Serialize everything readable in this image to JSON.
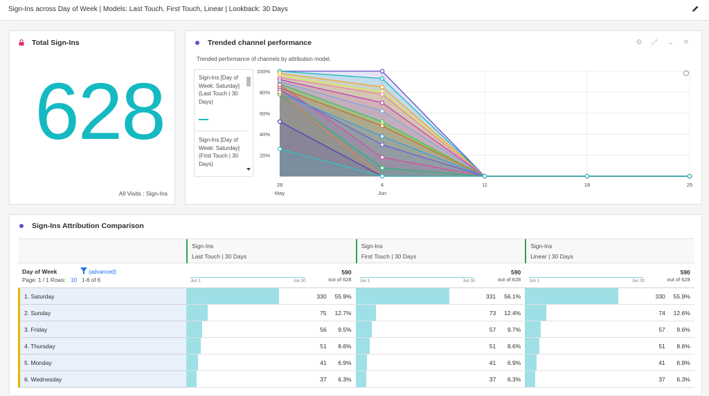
{
  "header": {
    "title": "Sign-Ins across Day of Week | Models: Last Touch, First Touch, Linear | Lookback: 30 Days"
  },
  "kpi": {
    "title": "Total Sign-Ins",
    "value": "628",
    "footer": "All Visits : Sign-Ins"
  },
  "trend": {
    "title": "Trended channel performance",
    "subtitle": "Trended performance of channels by attribution model.",
    "legend": [
      {
        "label": "Sign-Ins [Day of Week: Saturday] (Last Touch | 30 Days)"
      },
      {
        "label": "Sign-Ins [Day of Week: Saturday] (First Touch | 30 Days)"
      }
    ],
    "info_icon": "info-icon"
  },
  "chart_data": {
    "type": "area",
    "x": [
      "28 May",
      "4 Jun",
      "11",
      "18",
      "25"
    ],
    "xticks": [
      "28",
      "4",
      "11",
      "18",
      "25"
    ],
    "xsub": [
      "May",
      "Jun",
      "",
      "",
      ""
    ],
    "yticks": [
      "100%",
      "80%",
      "60%",
      "40%",
      "20%"
    ],
    "ylim": [
      0,
      100
    ],
    "series": [
      {
        "color": "#5b50c8",
        "values": [
          100,
          100,
          0,
          0,
          0
        ]
      },
      {
        "color": "#15b9c2",
        "values": [
          100,
          93,
          0,
          0,
          0
        ]
      },
      {
        "color": "#f5a623",
        "values": [
          98,
          85,
          0,
          0,
          0
        ]
      },
      {
        "color": "#e6e645",
        "values": [
          96,
          80,
          0,
          0,
          0
        ]
      },
      {
        "color": "#f07fa0",
        "values": [
          94,
          78,
          0,
          0,
          0
        ]
      },
      {
        "color": "#c03db8",
        "values": [
          92,
          70,
          0,
          0,
          0
        ]
      },
      {
        "color": "#7ba7e8",
        "values": [
          90,
          62,
          0,
          0,
          0
        ]
      },
      {
        "color": "#3fbf6a",
        "values": [
          88,
          52,
          0,
          0,
          0
        ]
      },
      {
        "color": "#8fd14f",
        "values": [
          86,
          50,
          0,
          0,
          0
        ]
      },
      {
        "color": "#c96a2a",
        "values": [
          84,
          48,
          0,
          0,
          0
        ]
      },
      {
        "color": "#d94fa0",
        "values": [
          87,
          18,
          0,
          0,
          0
        ]
      },
      {
        "color": "#6c5fd8",
        "values": [
          82,
          30,
          0,
          0,
          0
        ]
      },
      {
        "color": "#3c9de0",
        "values": [
          79,
          38,
          0,
          0,
          0
        ]
      },
      {
        "color": "#2bb573",
        "values": [
          78,
          8,
          0,
          0,
          0
        ]
      },
      {
        "color": "#e8834a",
        "values": [
          80,
          0,
          0,
          0,
          0
        ]
      },
      {
        "color": "#5040b8",
        "values": [
          52,
          0,
          0,
          0,
          0
        ]
      },
      {
        "color": "#2ec4c4",
        "values": [
          26,
          0,
          0,
          0,
          0
        ]
      }
    ]
  },
  "table": {
    "title": "Sign-Ins Attribution Comparison",
    "dimension": "Day of Week",
    "advanced": "(advanced)",
    "page": "Page: 1 / 1  Rows:",
    "rows_count": "10",
    "range": "1-6 of 6",
    "columns": [
      {
        "metric": "Sign-Ins",
        "model": "Last Touch | 30 Days",
        "total": "590",
        "of": "out of 628",
        "start": "Jun 1",
        "end": "Jun 30"
      },
      {
        "metric": "Sign-Ins",
        "model": "First Touch | 30 Days",
        "total": "590",
        "of": "out of 628",
        "start": "Jun 1",
        "end": "Jun 30"
      },
      {
        "metric": "Sign-Ins",
        "model": "Linear | 30 Days",
        "total": "590",
        "of": "out of 628",
        "start": "Jun 1",
        "end": "Jun 30"
      }
    ],
    "rows": [
      {
        "label": "1.  Saturday",
        "cells": [
          {
            "v": "330",
            "p": "55.9%",
            "f": 0.559
          },
          {
            "v": "331",
            "p": "56.1%",
            "f": 0.561
          },
          {
            "v": "330",
            "p": "55.9%",
            "f": 0.559
          }
        ]
      },
      {
        "label": "2.  Sunday",
        "cells": [
          {
            "v": "75",
            "p": "12.7%",
            "f": 0.127
          },
          {
            "v": "73",
            "p": "12.4%",
            "f": 0.124
          },
          {
            "v": "74",
            "p": "12.6%",
            "f": 0.126
          }
        ]
      },
      {
        "label": "3.  Friday",
        "cells": [
          {
            "v": "56",
            "p": "9.5%",
            "f": 0.095
          },
          {
            "v": "57",
            "p": "9.7%",
            "f": 0.097
          },
          {
            "v": "57",
            "p": "9.6%",
            "f": 0.096
          }
        ]
      },
      {
        "label": "4.  Thursday",
        "cells": [
          {
            "v": "51",
            "p": "8.6%",
            "f": 0.086
          },
          {
            "v": "51",
            "p": "8.6%",
            "f": 0.086
          },
          {
            "v": "51",
            "p": "8.6%",
            "f": 0.086
          }
        ]
      },
      {
        "label": "5.  Monday",
        "cells": [
          {
            "v": "41",
            "p": "6.9%",
            "f": 0.069
          },
          {
            "v": "41",
            "p": "6.9%",
            "f": 0.069
          },
          {
            "v": "41",
            "p": "6.9%",
            "f": 0.069
          }
        ]
      },
      {
        "label": "6.  Wednesday",
        "cells": [
          {
            "v": "37",
            "p": "6.3%",
            "f": 0.063
          },
          {
            "v": "37",
            "p": "6.3%",
            "f": 0.063
          },
          {
            "v": "37",
            "p": "6.3%",
            "f": 0.063
          }
        ]
      }
    ]
  },
  "colors": {
    "accent": "#15b9c2",
    "dot": "#5b50c8",
    "lock": "#d6336c",
    "rowbg": "#e8f1fb",
    "bar": "#9ee0e6"
  }
}
